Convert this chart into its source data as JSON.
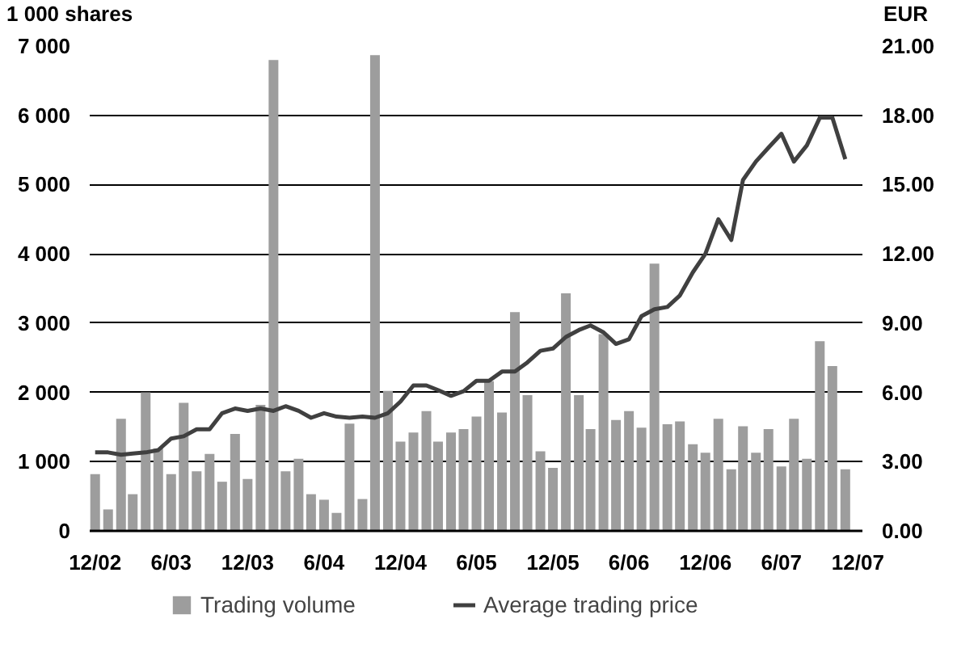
{
  "chart_data": {
    "type": "bar",
    "ylabel": "1 000 shares",
    "y2label": "EUR",
    "x": [
      "2002-12",
      "2003-01",
      "2003-02",
      "2003-03",
      "2003-04",
      "2003-05",
      "2003-06",
      "2003-07",
      "2003-08",
      "2003-09",
      "2003-10",
      "2003-11",
      "2003-12",
      "2004-01",
      "2004-02",
      "2004-03",
      "2004-04",
      "2004-05",
      "2004-06",
      "2004-07",
      "2004-08",
      "2004-09",
      "2004-10",
      "2004-11",
      "2004-12",
      "2005-01",
      "2005-02",
      "2005-03",
      "2005-04",
      "2005-05",
      "2005-06",
      "2005-07",
      "2005-08",
      "2005-09",
      "2005-10",
      "2005-11",
      "2005-12",
      "2006-01",
      "2006-02",
      "2006-03",
      "2006-04",
      "2006-05",
      "2006-06",
      "2006-07",
      "2006-08",
      "2006-09",
      "2006-10",
      "2006-11",
      "2006-12",
      "2007-01",
      "2007-02",
      "2007-03",
      "2007-04",
      "2007-05",
      "2007-06",
      "2007-07",
      "2007-08",
      "2007-09",
      "2007-10",
      "2007-11"
    ],
    "series": [
      {
        "name": "Trading volume",
        "color": "#9d9d9d",
        "values": [
          820,
          310,
          1620,
          530,
          2000,
          1190,
          820,
          1850,
          860,
          1110,
          710,
          1400,
          750,
          1820,
          6800,
          860,
          1040,
          530,
          450,
          260,
          1550,
          460,
          6870,
          2020,
          1290,
          1420,
          1730,
          1290,
          1420,
          1470,
          1650,
          2160,
          1710,
          3160,
          1960,
          1150,
          910,
          3430,
          1960,
          1470,
          2840,
          1600,
          1730,
          1490,
          3860,
          1540,
          1580,
          1250,
          1130,
          1620,
          890,
          1510,
          1130,
          1470,
          930,
          1620,
          1040,
          2740,
          2380,
          890
        ]
      },
      {
        "name": "Average trading price",
        "type": "line",
        "axis": "y2",
        "color": "#404040",
        "values": [
          3.4,
          3.4,
          3.3,
          3.35,
          3.4,
          3.5,
          4.0,
          4.1,
          4.4,
          4.4,
          5.1,
          5.3,
          5.2,
          5.3,
          5.2,
          5.4,
          5.2,
          4.9,
          5.1,
          4.95,
          4.9,
          4.95,
          4.9,
          5.1,
          5.6,
          6.3,
          6.3,
          6.1,
          5.85,
          6.05,
          6.5,
          6.5,
          6.9,
          6.9,
          7.3,
          7.8,
          7.9,
          8.4,
          8.7,
          8.9,
          8.6,
          8.1,
          8.3,
          9.3,
          9.6,
          9.7,
          10.2,
          11.2,
          12.0,
          13.5,
          12.6,
          15.2,
          16.0,
          16.6,
          17.2,
          16.0,
          16.7,
          17.9,
          17.9,
          16.1
        ]
      }
    ],
    "xlim": [
      "2002-11-18",
      "2007-12-12"
    ],
    "xticks": [
      {
        "value": "2002-12",
        "label": "12/02"
      },
      {
        "value": "2003-06",
        "label": "6/03"
      },
      {
        "value": "2003-12",
        "label": "12/03"
      },
      {
        "value": "2004-06",
        "label": "6/04"
      },
      {
        "value": "2004-12",
        "label": "12/04"
      },
      {
        "value": "2005-06",
        "label": "6/05"
      },
      {
        "value": "2005-12",
        "label": "12/05"
      },
      {
        "value": "2006-06",
        "label": "6/06"
      },
      {
        "value": "2006-12",
        "label": "12/06"
      },
      {
        "value": "2007-06",
        "label": "6/07"
      },
      {
        "value": "2007-12",
        "label": "12/07"
      }
    ],
    "ylim": [
      0,
      7000
    ],
    "yticks": [
      0,
      {
        "value": 1000,
        "label": "1 000"
      },
      {
        "value": 2000,
        "label": "2 000"
      },
      {
        "value": 3000,
        "label": "3 000"
      },
      {
        "value": 4000,
        "label": "4 000"
      },
      {
        "value": 5000,
        "label": "5 000"
      },
      {
        "value": 6000,
        "label": "6 000"
      },
      {
        "value": 7000,
        "label": "7 000"
      }
    ],
    "y2lim": [
      0,
      21
    ],
    "y2ticks": [
      {
        "value": 0,
        "label": "0.00"
      },
      {
        "value": 3,
        "label": "3.00"
      },
      {
        "value": 6,
        "label": "6.00"
      },
      {
        "value": 9,
        "label": "9.00"
      },
      {
        "value": 12,
        "label": "12.00"
      },
      {
        "value": 15,
        "label": "15.00"
      },
      {
        "value": 18,
        "label": "18.00"
      },
      {
        "value": 21,
        "label": "21.00"
      }
    ],
    "grid": "y",
    "legend": "bottom",
    "marker": "none",
    "line_style": "solid"
  }
}
